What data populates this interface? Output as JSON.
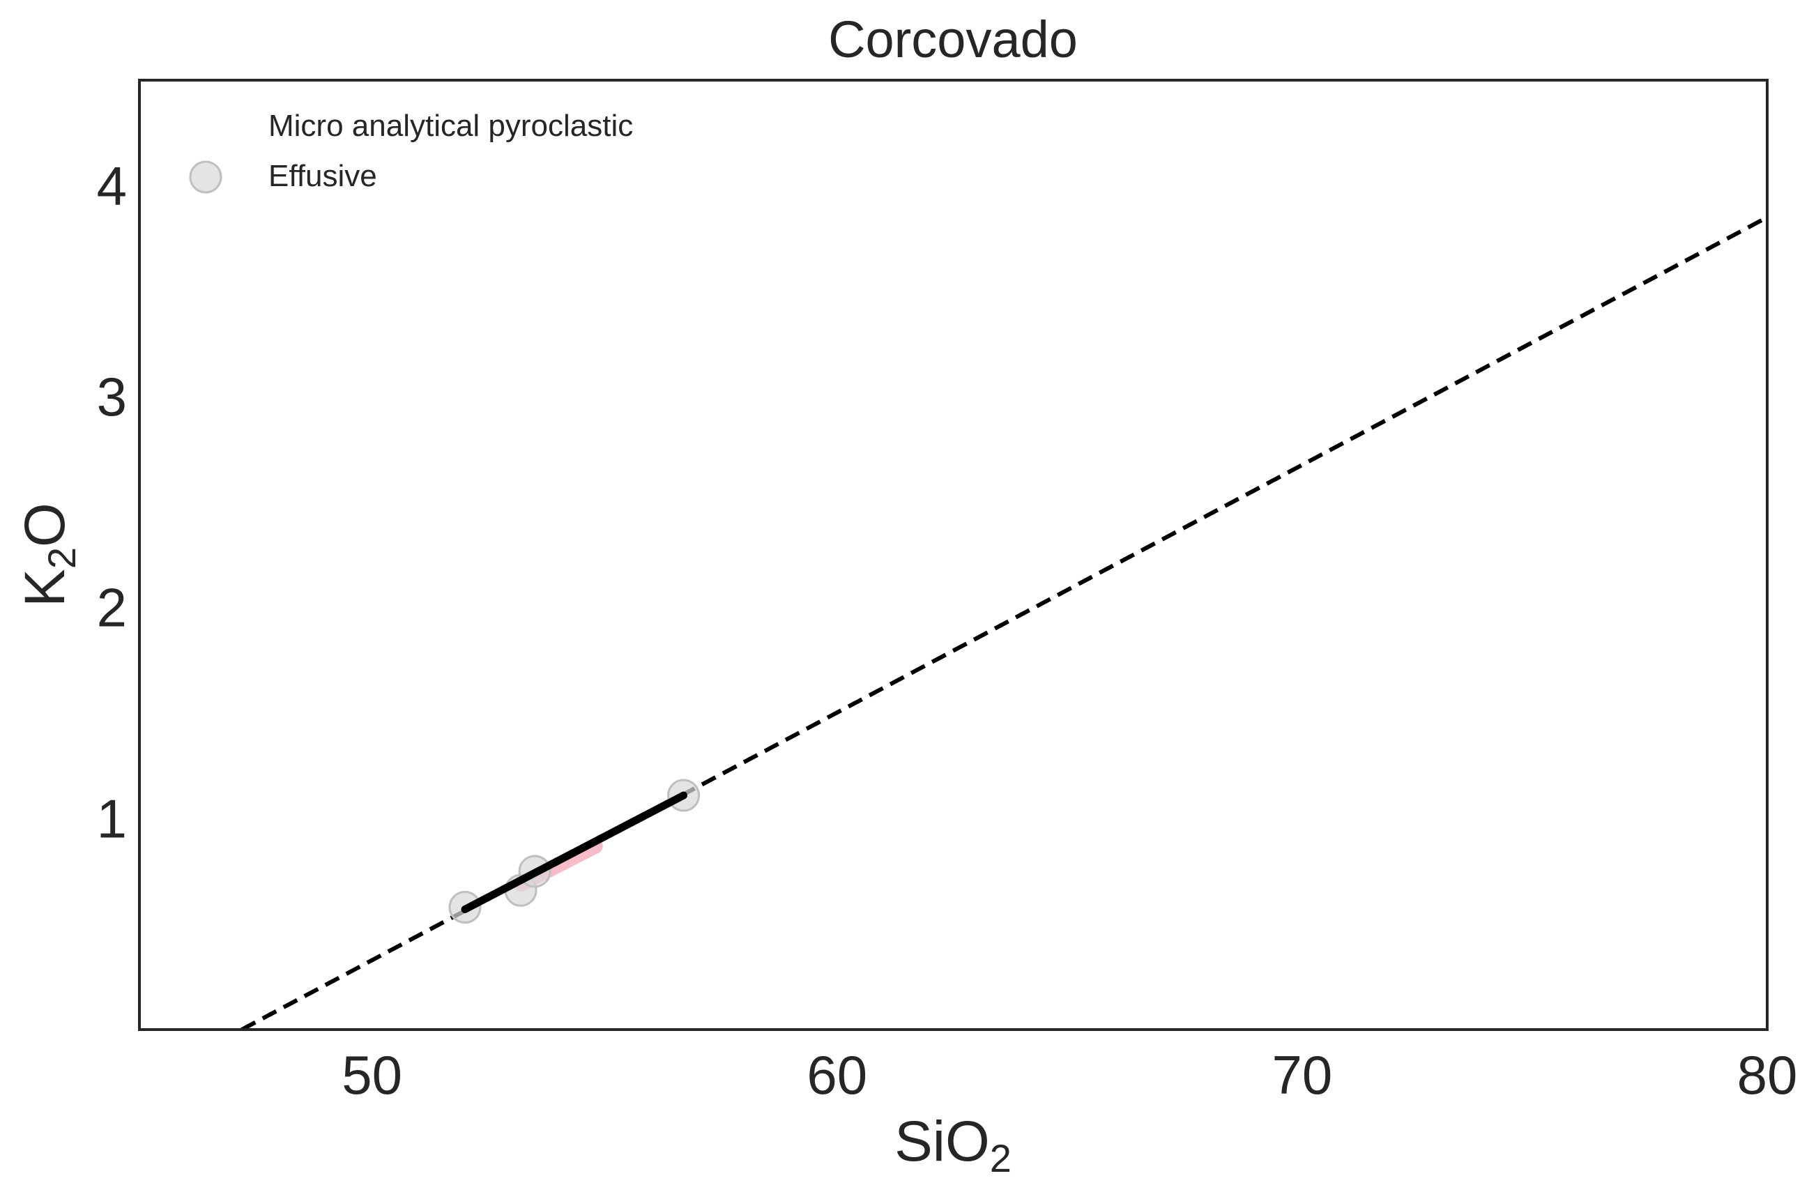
{
  "chart_data": {
    "type": "scatter",
    "title": "Corcovado",
    "xlabel": {
      "base": "SiO",
      "sub": "2"
    },
    "ylabel": {
      "base": "K",
      "sub": "2",
      "rest": "O"
    },
    "xlim": [
      45,
      80
    ],
    "ylim": [
      0,
      4.5
    ],
    "xticks": [
      50,
      60,
      70,
      80
    ],
    "yticks": [
      1,
      2,
      3,
      4
    ],
    "grid": false,
    "legend": {
      "placement": "top-left",
      "entries": [
        {
          "label": "Micro analytical pyroclastic",
          "marker": "none"
        },
        {
          "label": "Effusive",
          "marker": "circle"
        }
      ]
    },
    "series": [
      {
        "name": "Effusive",
        "kind": "points",
        "color": "#d9d9d9",
        "edge": "#bfbfbf",
        "alpha": 0.7,
        "points": [
          {
            "x": 52.0,
            "y": 0.58
          },
          {
            "x": 53.2,
            "y": 0.66
          },
          {
            "x": 53.5,
            "y": 0.75
          },
          {
            "x": 56.7,
            "y": 1.11
          }
        ]
      },
      {
        "kind": "solid-fit",
        "color": "#000000",
        "points": [
          {
            "x": 52.0,
            "y": 0.57
          },
          {
            "x": 56.7,
            "y": 1.11
          }
        ]
      },
      {
        "kind": "band",
        "color": "#f4a6b4",
        "points": [
          {
            "x": 53.2,
            "y": 0.69
          },
          {
            "x": 54.8,
            "y": 0.87
          }
        ]
      },
      {
        "kind": "dashed-line",
        "color": "#000000",
        "points": [
          {
            "x": 47.2,
            "y": 0.0
          },
          {
            "x": 80.0,
            "y": 3.85
          }
        ]
      }
    ]
  }
}
